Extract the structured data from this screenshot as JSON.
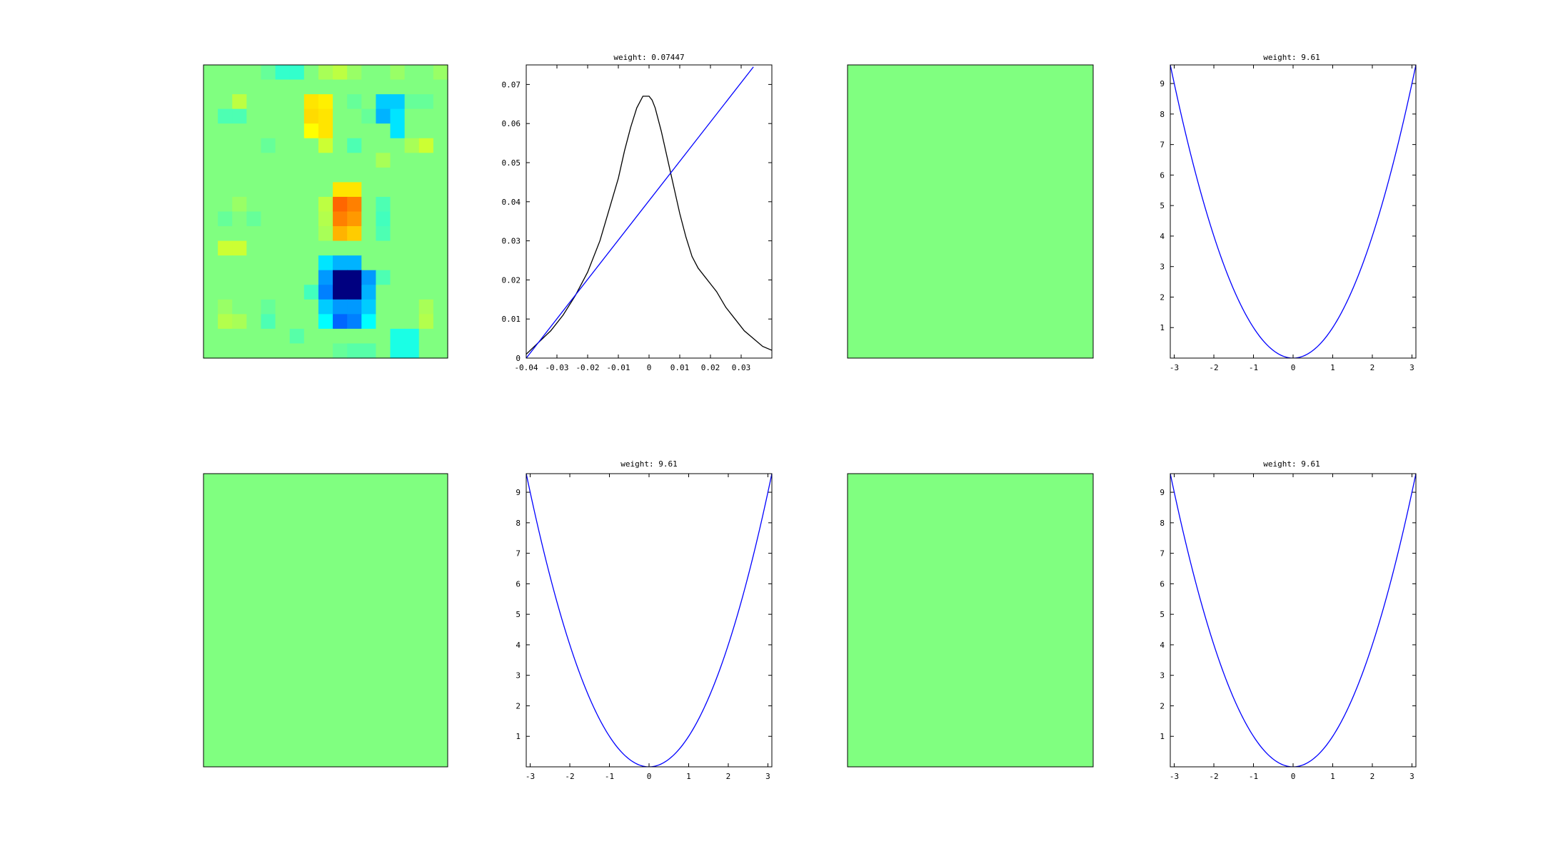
{
  "colors": {
    "background": "#ffffff",
    "axis": "#000000",
    "blue_line": "#0000ff",
    "black_line": "#000000",
    "uniform_heat": "#80ff80"
  },
  "chart_data": [
    {
      "type": "heatmap",
      "rows": 20,
      "cols": 17,
      "colormap": "jet",
      "values": [
        [
          0,
          0,
          0,
          0,
          -0.05,
          -0.15,
          -0.15,
          0,
          0.08,
          0.12,
          0.05,
          0,
          0,
          0.05,
          0,
          0,
          0.05
        ],
        [
          0,
          0,
          0,
          0,
          0,
          0,
          0,
          0,
          0,
          0,
          0,
          0,
          0,
          0,
          0,
          0,
          0
        ],
        [
          0,
          0,
          0.12,
          0,
          0,
          0,
          0,
          0.3,
          0.28,
          0,
          -0.05,
          0,
          -0.35,
          -0.35,
          -0.05,
          -0.05,
          0
        ],
        [
          0,
          -0.1,
          -0.1,
          0,
          0,
          0,
          0,
          0.32,
          0.3,
          0,
          0,
          -0.05,
          -0.4,
          -0.3,
          0,
          0,
          0
        ],
        [
          0,
          0,
          0,
          0,
          0,
          0,
          0,
          0.25,
          0.3,
          0,
          0,
          0,
          0,
          -0.3,
          0,
          0,
          0
        ],
        [
          0,
          0,
          0,
          0,
          -0.05,
          0,
          0,
          0,
          0.15,
          0,
          -0.1,
          0,
          0,
          0,
          0.08,
          0.15,
          0
        ],
        [
          0,
          0,
          0,
          0,
          0,
          0,
          0,
          0,
          0,
          0,
          0,
          0,
          0.08,
          0,
          0,
          0,
          0
        ],
        [
          0,
          0,
          0,
          0,
          0,
          0,
          0,
          0,
          0,
          0,
          0,
          0,
          0,
          0,
          0,
          0,
          0
        ],
        [
          0,
          0,
          0,
          0,
          0,
          0,
          0,
          0,
          0,
          0.3,
          0.3,
          0,
          0,
          0,
          0,
          0,
          0
        ],
        [
          0,
          0,
          0.05,
          0,
          0,
          0,
          0,
          0,
          0.12,
          0.55,
          0.5,
          0,
          -0.1,
          0,
          0,
          0,
          0
        ],
        [
          0,
          -0.05,
          0,
          -0.05,
          0,
          0,
          0,
          0,
          0.1,
          0.5,
          0.45,
          0,
          -0.12,
          0,
          0,
          0,
          0
        ],
        [
          0,
          0,
          0,
          0,
          0,
          0,
          0,
          0,
          0.08,
          0.4,
          0.35,
          0,
          -0.1,
          0,
          0,
          0,
          0
        ],
        [
          0,
          0.15,
          0.15,
          0,
          0,
          0,
          0,
          0,
          0,
          0,
          0,
          0,
          0,
          0,
          0,
          0,
          0
        ],
        [
          0,
          0,
          0,
          0,
          0,
          0,
          0,
          0,
          -0.3,
          -0.4,
          -0.4,
          0,
          0,
          0,
          0,
          0,
          0
        ],
        [
          0,
          0,
          0,
          0,
          0,
          0,
          0,
          0,
          -0.45,
          -1.0,
          -1.0,
          -0.45,
          -0.1,
          0,
          0,
          0,
          0
        ],
        [
          0,
          0,
          0,
          0,
          0,
          0,
          0,
          -0.12,
          -0.5,
          -1.0,
          -1.0,
          -0.4,
          0,
          0,
          0,
          0,
          0
        ],
        [
          0,
          0.05,
          0,
          0,
          -0.05,
          0,
          0,
          0,
          -0.35,
          -0.45,
          -0.45,
          -0.35,
          0,
          0,
          0,
          0.08,
          0
        ],
        [
          0,
          0.1,
          0.08,
          0,
          -0.1,
          0,
          0,
          0,
          -0.25,
          -0.55,
          -0.5,
          -0.25,
          0,
          0,
          0,
          0.1,
          0
        ],
        [
          0,
          0,
          0,
          0,
          0,
          0,
          -0.08,
          0,
          0,
          0,
          0,
          0,
          0,
          -0.2,
          -0.2,
          0,
          0
        ],
        [
          0,
          0,
          0,
          0,
          0,
          0,
          0,
          0,
          0,
          -0.05,
          -0.08,
          -0.08,
          0,
          -0.2,
          -0.2,
          0,
          0
        ]
      ]
    },
    {
      "type": "line",
      "title": "weight: 0.07447",
      "xlim": [
        -0.04,
        0.04
      ],
      "ylim": [
        0,
        0.075
      ],
      "xticks": [
        "-0.04",
        "-0.03",
        "-0.02",
        "-0.01",
        "0",
        "0.01",
        "0.02",
        "0.03"
      ],
      "yticks": [
        "0",
        "0.01",
        "0.02",
        "0.03",
        "0.04",
        "0.05",
        "0.06",
        "0.07"
      ],
      "series": [
        {
          "color": "#000000",
          "x": [
            -0.04,
            -0.036,
            -0.032,
            -0.028,
            -0.024,
            -0.02,
            -0.016,
            -0.013,
            -0.01,
            -0.008,
            -0.006,
            -0.004,
            -0.002,
            -0.001,
            0,
            0.001,
            0.002,
            0.004,
            0.006,
            0.008,
            0.01,
            0.012,
            0.014,
            0.016,
            0.018,
            0.02,
            0.022,
            0.025,
            0.028,
            0.031,
            0.034,
            0.037,
            0.04
          ],
          "y": [
            0.001,
            0.004,
            0.007,
            0.011,
            0.016,
            0.022,
            0.03,
            0.038,
            0.046,
            0.053,
            0.059,
            0.064,
            0.067,
            0.067,
            0.067,
            0.066,
            0.064,
            0.058,
            0.051,
            0.044,
            0.037,
            0.031,
            0.026,
            0.023,
            0.021,
            0.019,
            0.017,
            0.013,
            0.01,
            0.007,
            0.005,
            0.003,
            0.002
          ]
        },
        {
          "color": "#0000ff",
          "x": [
            -0.04,
            0.034
          ],
          "y": [
            0,
            0.0745
          ]
        }
      ]
    },
    {
      "type": "heatmap",
      "uniform": true,
      "color": "#80ff80"
    },
    {
      "type": "line",
      "title": "weight: 9.61",
      "xlim": [
        -3.1,
        3.1
      ],
      "ylim": [
        0,
        9.61
      ],
      "xticks": [
        "-3",
        "-2",
        "-1",
        "0",
        "1",
        "2",
        "3"
      ],
      "yticks": [
        "1",
        "2",
        "3",
        "4",
        "5",
        "6",
        "7",
        "8",
        "9"
      ],
      "series": [
        {
          "color": "#0000ff",
          "function": "x^2",
          "x_range": [
            -3.1,
            3.1
          ]
        }
      ]
    },
    {
      "type": "heatmap",
      "uniform": true,
      "color": "#80ff80"
    },
    {
      "type": "line",
      "title": "weight: 9.61",
      "xlim": [
        -3.1,
        3.1
      ],
      "ylim": [
        0,
        9.61
      ],
      "xticks": [
        "-3",
        "-2",
        "-1",
        "0",
        "1",
        "2",
        "3"
      ],
      "yticks": [
        "1",
        "2",
        "3",
        "4",
        "5",
        "6",
        "7",
        "8",
        "9"
      ],
      "series": [
        {
          "color": "#0000ff",
          "function": "x^2",
          "x_range": [
            -3.1,
            3.1
          ]
        }
      ]
    },
    {
      "type": "heatmap",
      "uniform": true,
      "color": "#80ff80"
    },
    {
      "type": "line",
      "title": "weight: 9.61",
      "xlim": [
        -3.1,
        3.1
      ],
      "ylim": [
        0,
        9.61
      ],
      "xticks": [
        "-3",
        "-2",
        "-1",
        "0",
        "1",
        "2",
        "3"
      ],
      "yticks": [
        "1",
        "2",
        "3",
        "4",
        "5",
        "6",
        "7",
        "8",
        "9"
      ],
      "series": [
        {
          "color": "#0000ff",
          "function": "x^2",
          "x_range": [
            -3.1,
            3.1
          ]
        }
      ]
    }
  ]
}
